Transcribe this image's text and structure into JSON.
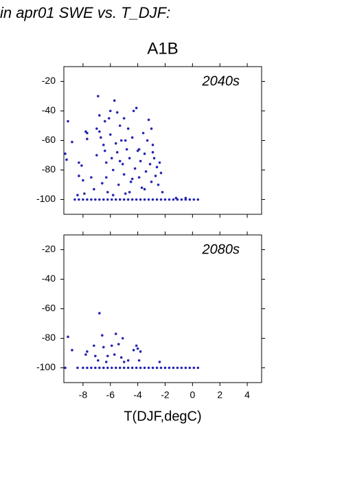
{
  "title": "in apr01 SWE vs. T_DJF:",
  "subtitle": "A1B",
  "xlabel": "T(DJF,degC)",
  "chart_data": [
    {
      "type": "scatter",
      "annotation": "2040s",
      "color": "#2424b4",
      "xlim": [
        -9.4,
        5.05
      ],
      "ylim": [
        -110,
        -10
      ],
      "xticks": [
        -8,
        -6,
        -4,
        -2,
        0,
        2,
        4
      ],
      "yticks": [
        -20,
        -40,
        -60,
        -80,
        -100
      ],
      "show_xtick_labels": false,
      "x": [
        -9.3,
        -9.2,
        -9.1,
        -8.8,
        -8.4,
        -8.3,
        -8.3,
        -8.1,
        -8.0,
        -7.8,
        -7.7,
        -7.7,
        -7.4,
        -7.2,
        -7.0,
        -7.0,
        -6.9,
        -6.8,
        -6.8,
        -6.7,
        -6.5,
        -6.4,
        -6.4,
        -6.3,
        -6.3,
        -6.2,
        -6.1,
        -6.0,
        -5.9,
        -5.8,
        -5.7,
        -5.6,
        -5.5,
        -5.5,
        -5.4,
        -5.3,
        -5.2,
        -5.1,
        -5.0,
        -5.0,
        -4.9,
        -4.8,
        -4.7,
        -4.6,
        -4.5,
        -4.4,
        -4.3,
        -4.2,
        -4.1,
        -4.0,
        -3.9,
        -3.8,
        -3.7,
        -3.6,
        -3.5,
        -3.4,
        -3.3,
        -3.2,
        -3.1,
        -3.0,
        -2.9,
        -2.8,
        -2.7,
        -2.6,
        -2.5,
        -2.4,
        -2.3,
        -2.2,
        -3.5,
        -4.6,
        -5.8,
        -6.6,
        -7.9,
        -6.0,
        -4.9,
        -3.0,
        -2.9,
        -3.9,
        -5.3,
        -4.4,
        -8.6,
        -8.3,
        -8.0,
        -7.7,
        -7.4,
        -7.1,
        -6.8,
        -6.5,
        -6.2,
        -5.9,
        -5.6,
        -5.3,
        -5.0,
        -4.7,
        -4.4,
        -4.1,
        -3.8,
        -3.5,
        -3.2,
        -2.9,
        -2.6,
        -2.3,
        -2.0,
        -1.7,
        -1.4,
        -1.1,
        -0.8,
        -0.5,
        -0.2,
        0.1,
        0.4,
        -1.2,
        -0.5
      ],
      "y": [
        -69,
        -73,
        -47,
        -61,
        -97,
        -75,
        -84,
        -77,
        -87,
        -54,
        -55,
        -59,
        -85,
        -93,
        -70,
        -52,
        -30,
        -43,
        -54,
        -58,
        -63,
        -67,
        -47,
        -75,
        -85,
        -95,
        -45,
        -56,
        -72,
        -80,
        -33,
        -62,
        -41,
        -68,
        -90,
        -50,
        -60,
        -76,
        -83,
        -45,
        -96,
        -66,
        -52,
        -72,
        -88,
        -58,
        -40,
        -79,
        -38,
        -67,
        -85,
        -74,
        -92,
        -55,
        -69,
        -81,
        -60,
        -46,
        -76,
        -88,
        -63,
        -72,
        -84,
        -78,
        -90,
        -75,
        -82,
        -95,
        -93,
        -95,
        -97,
        -89,
        -96,
        -40,
        -60,
        -52,
        -68,
        -66,
        -74,
        -86,
        -100,
        -100,
        -100,
        -100,
        -100,
        -100,
        -100,
        -100,
        -100,
        -100,
        -100,
        -100,
        -100,
        -100,
        -100,
        -100,
        -100,
        -100,
        -100,
        -100,
        -100,
        -100,
        -100,
        -100,
        -100,
        -100,
        -100,
        -100,
        -100,
        -100,
        -100,
        -99,
        -99
      ]
    },
    {
      "type": "scatter",
      "annotation": "2080s",
      "color": "#2424b4",
      "xlim": [
        -9.4,
        5.05
      ],
      "ylim": [
        -110,
        -10
      ],
      "xticks": [
        -8,
        -6,
        -4,
        -2,
        0,
        2,
        4
      ],
      "yticks": [
        -20,
        -40,
        -60,
        -80,
        -100
      ],
      "show_xtick_labels": true,
      "x": [
        -9.3,
        -9.1,
        -8.8,
        -8.4,
        -7.8,
        -7.7,
        -7.2,
        -7.1,
        -6.9,
        -6.8,
        -6.6,
        -6.5,
        -6.3,
        -6.2,
        -5.9,
        -5.7,
        -5.6,
        -5.4,
        -5.2,
        -5.1,
        -4.7,
        -4.3,
        -4.1,
        -4.0,
        -3.9,
        -3.8,
        -2.4,
        -5.0,
        -8.0,
        -7.7,
        -7.4,
        -7.1,
        -6.8,
        -6.5,
        -6.2,
        -5.9,
        -5.6,
        -5.3,
        -5.0,
        -4.7,
        -4.4,
        -4.1,
        -3.8,
        -3.5,
        -3.2,
        -2.9,
        -2.6,
        -2.3,
        -2.0,
        -1.7,
        -1.4,
        -1.1,
        -0.8,
        -0.5,
        -0.2,
        0.1,
        0.4
      ],
      "y": [
        -100,
        -79,
        -88,
        -100,
        -91,
        -89,
        -85,
        -92,
        -95,
        -63,
        -78,
        -86,
        -96,
        -92,
        -85,
        -91,
        -77,
        -84,
        -93,
        -80,
        -95,
        -88,
        -85,
        -87,
        -95,
        -89,
        -96,
        -96,
        -100,
        -100,
        -100,
        -100,
        -100,
        -100,
        -100,
        -100,
        -100,
        -100,
        -100,
        -100,
        -100,
        -100,
        -100,
        -100,
        -100,
        -100,
        -100,
        -100,
        -100,
        -100,
        -100,
        -100,
        -100,
        -100,
        -100,
        -100,
        -100
      ]
    }
  ]
}
